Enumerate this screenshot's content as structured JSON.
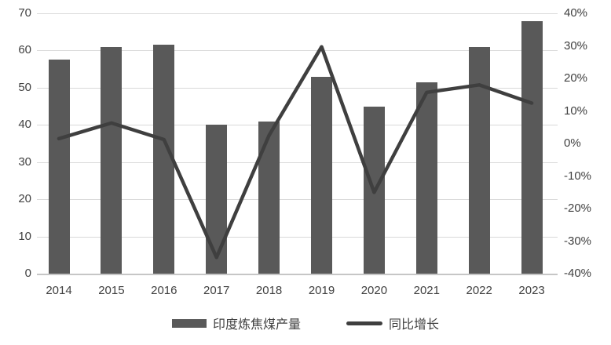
{
  "chart_data": {
    "type": "bar+line combo",
    "categories": [
      "2014",
      "2015",
      "2016",
      "2017",
      "2018",
      "2019",
      "2020",
      "2021",
      "2022",
      "2023"
    ],
    "series": [
      {
        "name": "印度炼焦煤产量",
        "type": "bar",
        "axis": "left",
        "values": [
          57.5,
          61,
          61.5,
          40,
          41,
          53,
          45,
          51.5,
          61,
          68
        ]
      },
      {
        "name": "同比增长",
        "type": "line",
        "axis": "right",
        "values": [
          1.5,
          6.3,
          1.2,
          -35.0,
          2.5,
          29.7,
          -15.0,
          15.7,
          18.0,
          12.4
        ]
      }
    ],
    "left_axis": {
      "min": 0,
      "max": 70,
      "step": 10,
      "ticks": [
        "0",
        "10",
        "20",
        "30",
        "40",
        "50",
        "60",
        "70"
      ]
    },
    "right_axis": {
      "min": -40,
      "max": 40,
      "step": 10,
      "ticks": [
        "-40%",
        "-30%",
        "-20%",
        "-10%",
        "0%",
        "10%",
        "20%",
        "30%",
        "40%"
      ]
    },
    "legend": [
      {
        "label": "印度炼焦煤产量",
        "marker": "bar"
      },
      {
        "label": "同比增长",
        "marker": "line"
      }
    ],
    "grid": "horizontal gridlines on",
    "legend_position": "bottom center",
    "colors": {
      "bar": "#595959",
      "line": "#3f3f3f",
      "gridline": "#d9d9d9",
      "baseline": "#c6c6c6",
      "text": "#404040",
      "background": "#ffffff"
    }
  }
}
